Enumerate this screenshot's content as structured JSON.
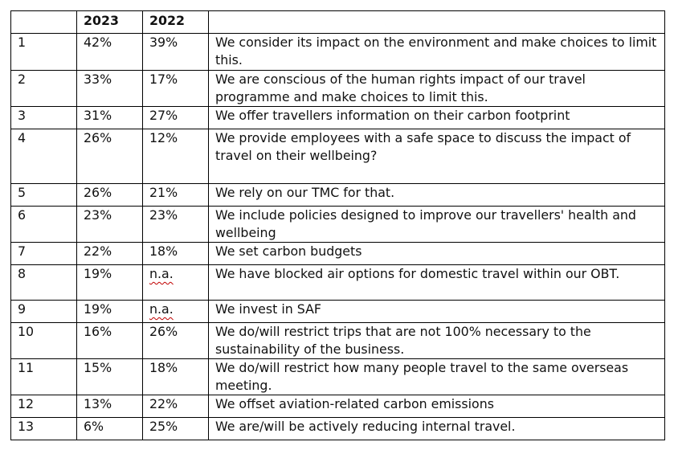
{
  "table": {
    "headers": [
      "",
      "2023",
      "2022",
      ""
    ],
    "rows": [
      {
        "rank": "1",
        "y2023": "42%",
        "y2022": "39%",
        "statement": "We consider its impact on the environment and make choices to limit this."
      },
      {
        "rank": "2",
        "y2023": "33%",
        "y2022": "17%",
        "statement": "We are conscious of the human rights impact of our travel programme and make choices to limit this."
      },
      {
        "rank": "3",
        "y2023": "31%",
        "y2022": "27%",
        "statement": "We offer travellers information on their carbon footprint"
      },
      {
        "rank": "4",
        "y2023": "26%",
        "y2022": "12%",
        "statement": "We provide employees with a safe space to discuss the impact of travel on their wellbeing?"
      },
      {
        "rank": "5",
        "y2023": "26%",
        "y2022": "21%",
        "statement": "We rely on our TMC for that."
      },
      {
        "rank": "6",
        "y2023": "23%",
        "y2022": "23%",
        "statement": "We include policies designed to improve our travellers' health and wellbeing"
      },
      {
        "rank": "7",
        "y2023": "22%",
        "y2022": "18%",
        "statement": "We set carbon budgets"
      },
      {
        "rank": "8",
        "y2023": "19%",
        "y2022": "n.a.",
        "statement": "We have blocked air options for domestic travel within our OBT."
      },
      {
        "rank": "9",
        "y2023": "19%",
        "y2022": "n.a.",
        "statement": "We invest in SAF"
      },
      {
        "rank": "10",
        "y2023": "16%",
        "y2022": "26%",
        "statement": "We do/will restrict trips that are not 100% necessary to the sustainability of the business."
      },
      {
        "rank": "11",
        "y2023": "15%",
        "y2022": "18%",
        "statement": "We do/will restrict how many people travel to the same overseas meeting."
      },
      {
        "rank": "12",
        "y2023": "13%",
        "y2022": "22%",
        "statement": "We offset aviation-related carbon emissions"
      },
      {
        "rank": "13",
        "y2023": "6%",
        "y2022": "25%",
        "statement": "We are/will be actively reducing internal travel."
      }
    ]
  },
  "colors": {
    "border": "#000000",
    "spellcheck_underline": "#c00000"
  }
}
